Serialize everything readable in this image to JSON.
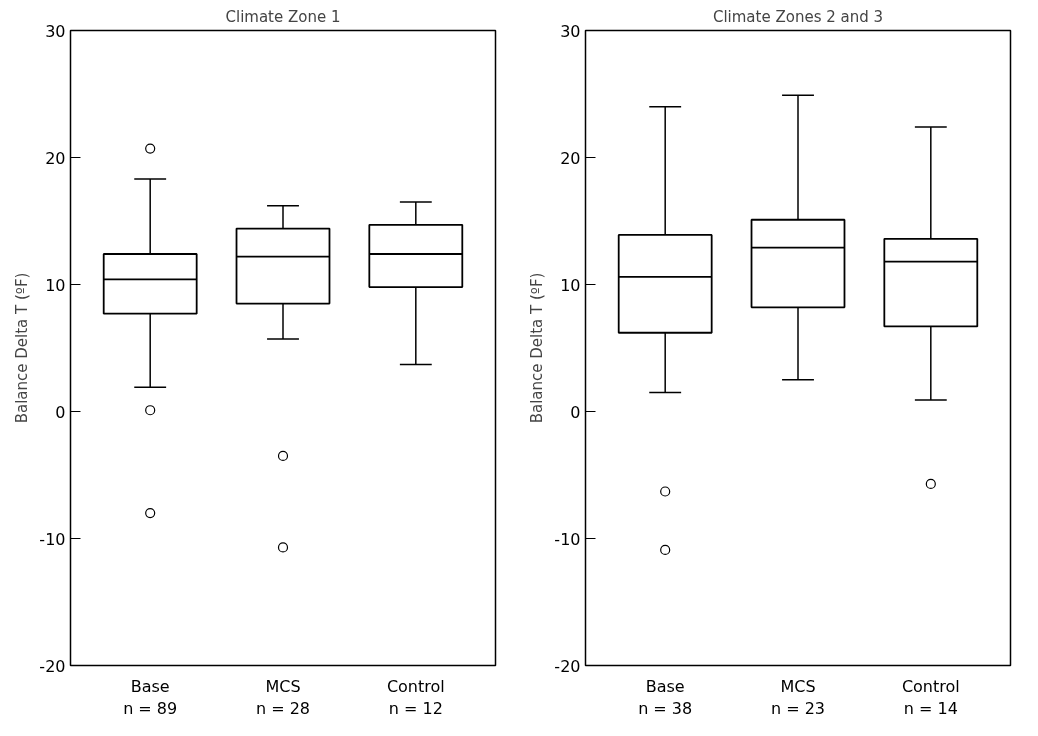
{
  "chart_data": [
    {
      "type": "box",
      "title": "Climate Zone 1",
      "ylabel": "Balance Delta T (ºF)",
      "categories": [
        "Base\nn = 89",
        "MCS\nn = 28",
        "Control\nn = 12"
      ],
      "ylim": [
        -20,
        30
      ],
      "yticks": [
        -20,
        -10,
        0,
        10,
        20,
        30
      ],
      "grid": false,
      "boxes": [
        {
          "low": 1.9,
          "q1": 7.7,
          "median": 10.4,
          "q3": 12.4,
          "high": 18.3,
          "outliers": [
            20.7,
            0.1,
            -8.0
          ]
        },
        {
          "low": 5.7,
          "q1": 8.5,
          "median": 12.2,
          "q3": 14.4,
          "high": 16.2,
          "outliers": [
            -3.5,
            -10.7
          ]
        },
        {
          "low": 3.7,
          "q1": 9.8,
          "median": 12.4,
          "q3": 14.7,
          "high": 16.5
        }
      ]
    },
    {
      "type": "box",
      "title": "Climate Zones 2 and 3",
      "ylabel": "Balance Delta T (ºF)",
      "categories": [
        "Base\nn = 38",
        "MCS\nn = 23",
        "Control\nn = 14"
      ],
      "ylim": [
        -20,
        30
      ],
      "yticks": [
        -20,
        -10,
        0,
        10,
        20,
        30
      ],
      "grid": false,
      "boxes": [
        {
          "low": 1.5,
          "q1": 6.2,
          "median": 10.6,
          "q3": 13.9,
          "high": 24.0,
          "outliers": [
            -6.3,
            -10.9
          ]
        },
        {
          "low": 2.5,
          "q1": 8.2,
          "median": 12.9,
          "q3": 15.1,
          "high": 24.9
        },
        {
          "low": 0.9,
          "q1": 6.7,
          "median": 11.8,
          "q3": 13.6,
          "high": 22.4,
          "outliers": [
            -5.7
          ]
        }
      ]
    }
  ]
}
